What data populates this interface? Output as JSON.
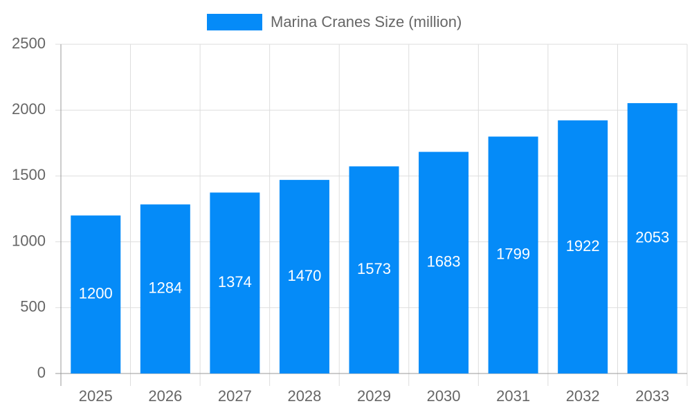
{
  "chart_data": {
    "type": "bar",
    "categories": [
      "2025",
      "2026",
      "2027",
      "2028",
      "2029",
      "2030",
      "2031",
      "2032",
      "2033"
    ],
    "series": [
      {
        "name": "Marina Cranes Size (million)",
        "color": "#058bf8",
        "values": [
          1200,
          1284,
          1374,
          1470,
          1573,
          1683,
          1799,
          1922,
          2053
        ]
      }
    ],
    "ylim": [
      0,
      2500
    ],
    "yticks": [
      0,
      500,
      1000,
      1500,
      2000,
      2500
    ],
    "grid": true,
    "data_labels": true,
    "legend": "top"
  }
}
